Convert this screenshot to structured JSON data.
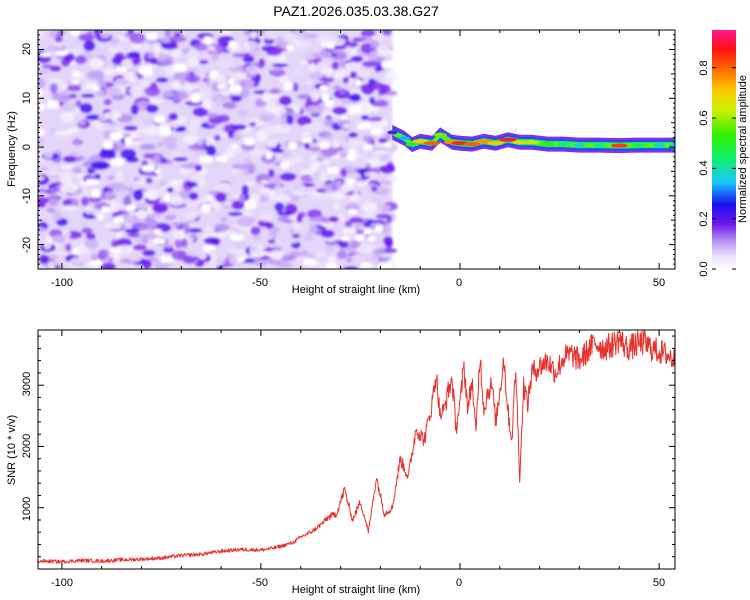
{
  "title": "PAZ1.2026.035.03.38.G27",
  "chart_data": [
    {
      "type": "heatmap",
      "title": "PAZ1.2026.035.03.38.G27",
      "xlabel": "Height of straight line (km)",
      "ylabel": "Frequency (Hz)",
      "xlim": [
        -106,
        54
      ],
      "ylim": [
        -25,
        24
      ],
      "x_ticks": [
        -100,
        -50,
        0,
        50
      ],
      "y_ticks": [
        20,
        10,
        0,
        -10,
        -20
      ],
      "x_tick_labels": [
        "-100",
        "-50",
        "0",
        "50"
      ],
      "y_tick_labels": [
        "20",
        "10",
        "0",
        "-10",
        "-20"
      ],
      "noise_region": {
        "x_range": [
          -106,
          -17
        ],
        "freq_range": [
          -25,
          24
        ],
        "amplitude_range": [
          0.0,
          0.25
        ],
        "color_band": "purple"
      },
      "signal_trace": {
        "x": [
          -17,
          -14,
          -12,
          -10,
          -7,
          -5,
          -2,
          0,
          3,
          6,
          9,
          12,
          15,
          18,
          22,
          26,
          30,
          35,
          40,
          45,
          50,
          54
        ],
        "freq_hz": [
          3.0,
          1.8,
          0.5,
          1.2,
          0.8,
          2.5,
          1.0,
          0.8,
          0.6,
          1.2,
          0.8,
          1.5,
          1.0,
          1.0,
          0.6,
          0.6,
          0.4,
          0.4,
          0.3,
          0.4,
          0.4,
          0.4
        ],
        "peak_amplitude": [
          0.2,
          0.35,
          0.5,
          0.75,
          0.85,
          0.6,
          0.8,
          0.9,
          0.85,
          0.8,
          0.75,
          0.95,
          0.7,
          0.65,
          0.55,
          0.45,
          0.4,
          0.45,
          0.88,
          0.5,
          0.4,
          0.4
        ]
      },
      "colorbar": {
        "label": "Normalized spectral amplitude",
        "range": [
          0.0,
          0.95
        ],
        "ticks": [
          0.0,
          0.2,
          0.4,
          0.6,
          0.8
        ],
        "tick_labels": [
          "0.0",
          "0.2",
          "0.4",
          "0.6",
          "0.8"
        ]
      }
    },
    {
      "type": "line",
      "xlabel": "Height of straight line (km)",
      "ylabel": "SNR (10 * v/v)",
      "xlim": [
        -106,
        54
      ],
      "ylim": [
        0,
        3900
      ],
      "x_ticks": [
        -100,
        -50,
        0,
        50
      ],
      "y_ticks": [
        1000,
        2000,
        3000
      ],
      "x_tick_labels": [
        "-100",
        "-50",
        "0",
        "50"
      ],
      "y_tick_labels": [
        "1000",
        "2000",
        "3000"
      ],
      "series": [
        {
          "name": "SNR",
          "color": "#e8312b",
          "x": [
            -106,
            -100,
            -95,
            -90,
            -85,
            -80,
            -75,
            -70,
            -65,
            -60,
            -55,
            -50,
            -47,
            -45,
            -42,
            -40,
            -37,
            -35,
            -33,
            -31,
            -29,
            -27,
            -25,
            -23,
            -21,
            -19,
            -17,
            -15,
            -13,
            -11,
            -9,
            -7,
            -6,
            -5,
            -4,
            -3,
            -2,
            -1,
            0,
            1,
            2,
            3,
            4,
            5,
            6,
            7,
            8,
            9,
            10,
            11,
            12,
            13,
            14,
            15,
            16,
            17,
            18,
            20,
            22,
            24,
            26,
            28,
            30,
            32,
            34,
            36,
            38,
            40,
            42,
            44,
            46,
            48,
            50,
            52,
            54
          ],
          "values": [
            130,
            120,
            140,
            130,
            150,
            160,
            180,
            220,
            240,
            290,
            320,
            310,
            340,
            370,
            430,
            520,
            620,
            720,
            850,
            900,
            1300,
            800,
            1100,
            600,
            1500,
            900,
            1000,
            1800,
            1500,
            2300,
            2100,
            2700,
            3200,
            2500,
            2600,
            2900,
            3100,
            2300,
            2700,
            3300,
            2600,
            3100,
            2200,
            3500,
            2600,
            2900,
            3000,
            2400,
            2900,
            3450,
            2600,
            2100,
            3300,
            1500,
            3000,
            2700,
            3200,
            3300,
            3400,
            3200,
            3450,
            3500,
            3400,
            3550,
            3700,
            3600,
            3650,
            3750,
            3600,
            3650,
            3700,
            3600,
            3550,
            3500,
            3400
          ]
        }
      ]
    }
  ]
}
